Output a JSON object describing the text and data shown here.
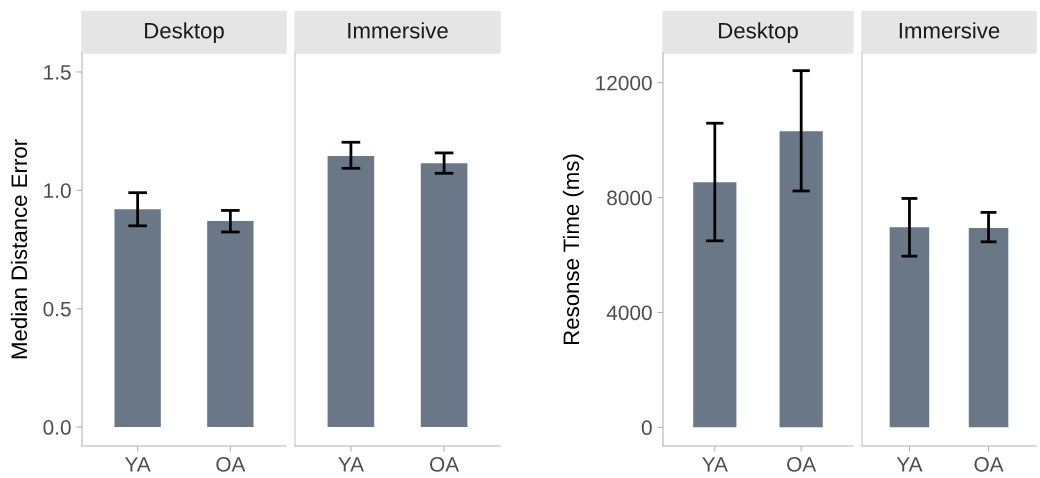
{
  "chart_data": [
    {
      "type": "bar",
      "title": "Desktop",
      "ylabel": "Median Distance Error",
      "categories": [
        "YA",
        "OA"
      ],
      "values": [
        0.92,
        0.87
      ],
      "errors": [
        [
          0.85,
          0.99
        ],
        [
          0.824,
          0.915
        ]
      ],
      "color": "#6a7787",
      "ylim": [
        -0.08,
        1.58
      ],
      "yticks": [
        {
          "value": 0,
          "label": "0.0"
        },
        0.5,
        {
          "value": 1,
          "label": "1.0"
        },
        1.5
      ],
      "grid": false
    },
    {
      "type": "bar",
      "title": "Immersive",
      "categories": [
        "YA",
        "OA"
      ],
      "values": [
        1.145,
        1.114
      ],
      "errors": [
        [
          1.093,
          1.203
        ],
        [
          1.072,
          1.158
        ]
      ],
      "color": "#6a7787",
      "ylim": [
        -0.08,
        1.58
      ],
      "tick_labels": "x",
      "grid": false
    },
    {
      "type": "bar",
      "title": "Desktop",
      "ylabel": "Resonse Time (ms)",
      "categories": [
        "YA",
        "OA"
      ],
      "values": [
        8530,
        10310
      ],
      "errors": [
        [
          6495,
          10590
        ],
        [
          8230,
          12420
        ]
      ],
      "color": "#6a7787",
      "ylim": [
        -650,
        13035
      ],
      "yticks": [
        0,
        4000,
        8000,
        12000
      ],
      "grid": false
    },
    {
      "type": "bar",
      "title": "Immersive",
      "categories": [
        "YA",
        "OA"
      ],
      "values": [
        6970,
        6940
      ],
      "errors": [
        [
          5960,
          7970
        ],
        [
          6460,
          7485
        ]
      ],
      "color": "#6a7787",
      "ylim": [
        -650,
        13035
      ],
      "tick_labels": "x",
      "grid": false
    }
  ]
}
